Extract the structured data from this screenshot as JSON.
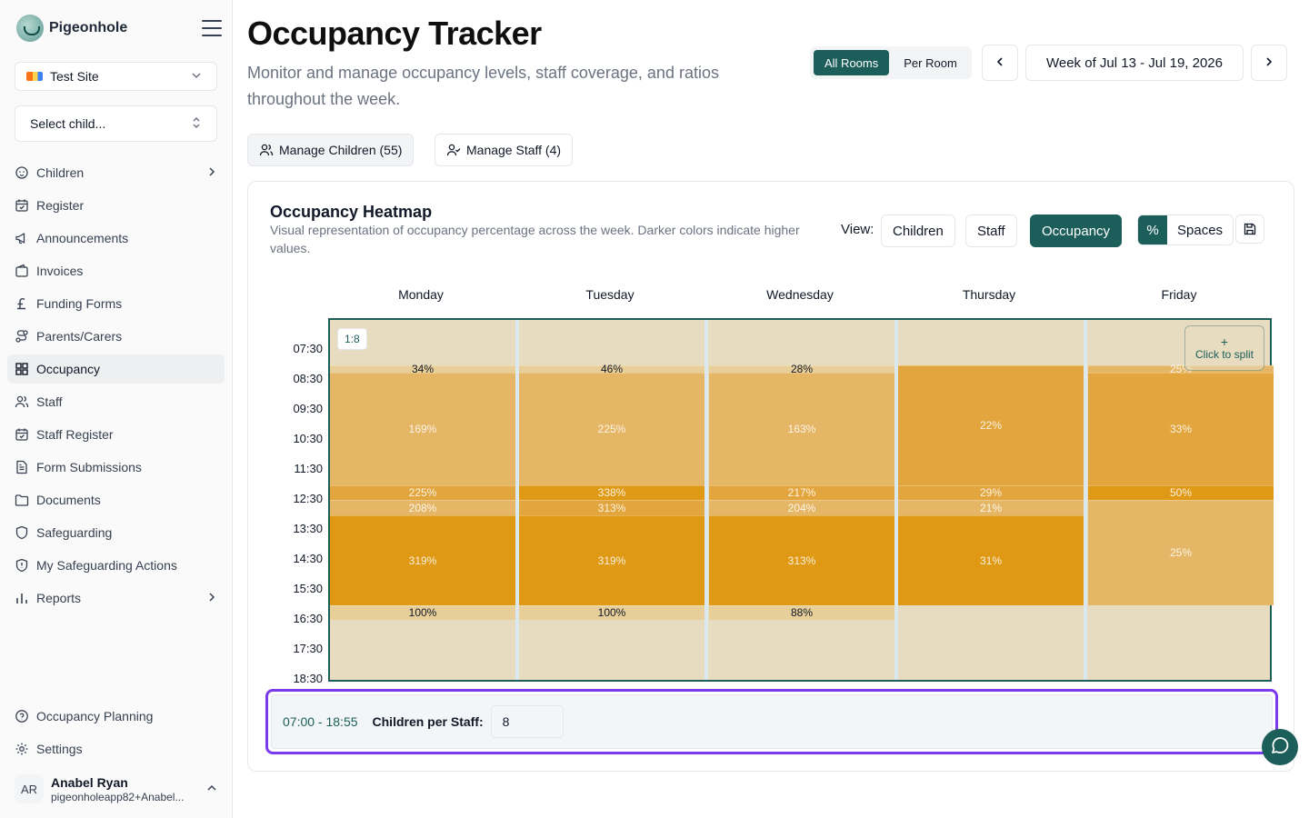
{
  "app": {
    "name": "Pigeonhole"
  },
  "sidebar": {
    "site_select": "Test Site",
    "child_select": "Select child...",
    "items": [
      {
        "label": "Children",
        "icon": "baby-icon",
        "chevron": true
      },
      {
        "label": "Register",
        "icon": "calendar-check-icon"
      },
      {
        "label": "Announcements",
        "icon": "megaphone-icon"
      },
      {
        "label": "Invoices",
        "icon": "wallet-icon"
      },
      {
        "label": "Funding Forms",
        "icon": "pound-icon"
      },
      {
        "label": "Parents/Carers",
        "icon": "route-icon"
      },
      {
        "label": "Occupancy",
        "icon": "grid-icon",
        "active": true
      },
      {
        "label": "Staff",
        "icon": "users-icon"
      },
      {
        "label": "Staff Register",
        "icon": "calendar-check-icon"
      },
      {
        "label": "Form Submissions",
        "icon": "file-text-icon"
      },
      {
        "label": "Documents",
        "icon": "folder-icon"
      },
      {
        "label": "Safeguarding",
        "icon": "shield-icon"
      },
      {
        "label": "My Safeguarding Actions",
        "icon": "shield-alert-icon"
      },
      {
        "label": "Reports",
        "icon": "bar-chart-icon",
        "chevron": true
      }
    ],
    "bottom_items": [
      {
        "label": "Occupancy Planning",
        "icon": "help-circle-icon"
      },
      {
        "label": "Settings",
        "icon": "gear-icon"
      }
    ],
    "user": {
      "initials": "AR",
      "name": "Anabel Ryan",
      "email": "pigeonholeapp82+Anabel..."
    }
  },
  "header": {
    "title": "Occupancy Tracker",
    "subtitle": "Monitor and manage occupancy levels, staff coverage, and ratios throughout the week.",
    "scope_toggle": [
      "All Rooms",
      "Per Room"
    ],
    "scope_selected": "All Rooms",
    "week_label": "Week of Jul 13 - Jul 19, 2026",
    "manage_children": "Manage Children (55)",
    "manage_staff": "Manage Staff (4)"
  },
  "heatmap": {
    "title": "Occupancy Heatmap",
    "description": "Visual representation of occupancy percentage across the week. Darker colors indicate higher values.",
    "view_label": "View:",
    "view_options": [
      "Children",
      "Staff",
      "Occupancy"
    ],
    "view_selected": "Occupancy",
    "unit_options": [
      "%",
      "Spaces"
    ],
    "unit_selected": "%",
    "ratio_badge": "1:8",
    "split_label": "Click to split",
    "split_plus": "+",
    "days": [
      "Monday",
      "Tuesday",
      "Wednesday",
      "Thursday",
      "Friday"
    ],
    "times": [
      "07:30",
      "08:30",
      "09:30",
      "10:30",
      "11:30",
      "12:30",
      "13:30",
      "14:30",
      "15:30",
      "16:30",
      "17:30",
      "18:30"
    ],
    "columns": [
      {
        "cells": [
          {
            "start": "08:30",
            "end": "08:45",
            "value": "34%",
            "level": 1
          },
          {
            "start": "08:45",
            "end": "12:30",
            "value": "169%",
            "level": 2
          },
          {
            "start": "12:30",
            "end": "13:00",
            "value": "225%",
            "level": 3
          },
          {
            "start": "13:00",
            "end": "13:30",
            "value": "208%",
            "level": 2
          },
          {
            "start": "13:30",
            "end": "16:30",
            "value": "319%",
            "level": 4
          },
          {
            "start": "16:30",
            "end": "17:00",
            "value": "100%",
            "level": 1
          }
        ]
      },
      {
        "cells": [
          {
            "start": "08:30",
            "end": "08:45",
            "value": "46%",
            "level": 1
          },
          {
            "start": "08:45",
            "end": "12:30",
            "value": "225%",
            "level": 2
          },
          {
            "start": "12:30",
            "end": "13:00",
            "value": "338%",
            "level": 4
          },
          {
            "start": "13:00",
            "end": "13:30",
            "value": "313%",
            "level": 3
          },
          {
            "start": "13:30",
            "end": "16:30",
            "value": "319%",
            "level": 4
          },
          {
            "start": "16:30",
            "end": "17:00",
            "value": "100%",
            "level": 1
          }
        ]
      },
      {
        "cells": [
          {
            "start": "08:30",
            "end": "08:45",
            "value": "28%",
            "level": 1
          },
          {
            "start": "08:45",
            "end": "12:30",
            "value": "163%",
            "level": 2
          },
          {
            "start": "12:30",
            "end": "13:00",
            "value": "217%",
            "level": 3
          },
          {
            "start": "13:00",
            "end": "13:30",
            "value": "204%",
            "level": 2
          },
          {
            "start": "13:30",
            "end": "16:30",
            "value": "313%",
            "level": 4
          },
          {
            "start": "16:30",
            "end": "17:00",
            "value": "88%",
            "level": 1
          }
        ]
      },
      {
        "cells": [
          {
            "start": "08:30",
            "end": "12:30",
            "value": "22%",
            "level": 3
          },
          {
            "start": "12:30",
            "end": "13:00",
            "value": "29%",
            "level": 3
          },
          {
            "start": "13:00",
            "end": "13:30",
            "value": "21%",
            "level": 2
          },
          {
            "start": "13:30",
            "end": "16:30",
            "value": "31%",
            "level": 4
          }
        ]
      },
      {
        "cells": [
          {
            "start": "08:30",
            "end": "08:45",
            "value": "25%",
            "level": 2
          },
          {
            "start": "08:45",
            "end": "12:30",
            "value": "33%",
            "level": 3
          },
          {
            "start": "12:30",
            "end": "13:00",
            "value": "50%",
            "level": 4
          },
          {
            "start": "13:00",
            "end": "16:30",
            "value": "25%",
            "level": 2
          }
        ]
      }
    ],
    "colors": {
      "base": "#e7dcc0",
      "level1": "#e8cf99",
      "level2": "#e5b666",
      "level3": "#e3a63e",
      "level4": "#df9915",
      "accent": "#1b5e5a",
      "highlight": "#7c3aed"
    },
    "footer": {
      "range": "07:00 - 18:55",
      "children_per_staff_label": "Children per Staff:",
      "children_per_staff_value": "8"
    }
  }
}
